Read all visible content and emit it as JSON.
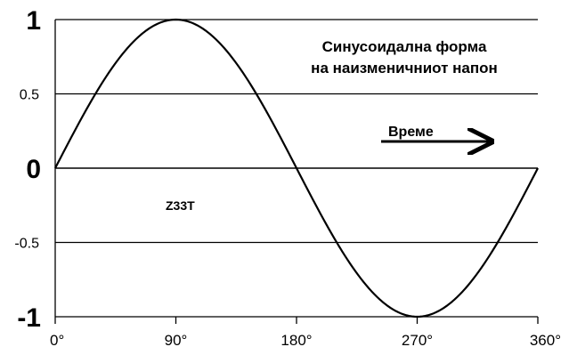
{
  "chart_data": {
    "type": "line",
    "title_lines": [
      "Синусоидална форма",
      "на наизменичниот напон"
    ],
    "xlabel": "",
    "ylabel": "",
    "x_ticks": [
      "0°",
      "90°",
      "180°",
      "270°",
      "360°"
    ],
    "y_ticks": [
      {
        "label": "1",
        "value": 1
      },
      {
        "label": "0.5",
        "value": 0.5
      },
      {
        "label": "0",
        "value": 0
      },
      {
        "label": "-0.5",
        "value": -0.5
      },
      {
        "label": "-1",
        "value": -1
      }
    ],
    "xlim": [
      0,
      360
    ],
    "ylim": [
      -1,
      1
    ],
    "grid": "horizontal",
    "series": [
      {
        "x": [
          0,
          15,
          30,
          45,
          60,
          75,
          90,
          105,
          120,
          135,
          150,
          165,
          180,
          195,
          210,
          225,
          240,
          255,
          270,
          285,
          300,
          315,
          330,
          345,
          360
        ],
        "y": [
          0,
          0.259,
          0.5,
          0.707,
          0.866,
          0.966,
          1,
          0.966,
          0.866,
          0.707,
          0.5,
          0.259,
          0,
          -0.259,
          -0.5,
          -0.707,
          -0.866,
          -0.966,
          -1,
          -0.966,
          -0.866,
          -0.707,
          -0.5,
          -0.259,
          0
        ]
      }
    ],
    "annotations": {
      "arrow_label": "Време",
      "watermark": "Z33T"
    },
    "colors": {
      "line": "#000000",
      "grid": "#000000",
      "background": "#ffffff"
    }
  }
}
